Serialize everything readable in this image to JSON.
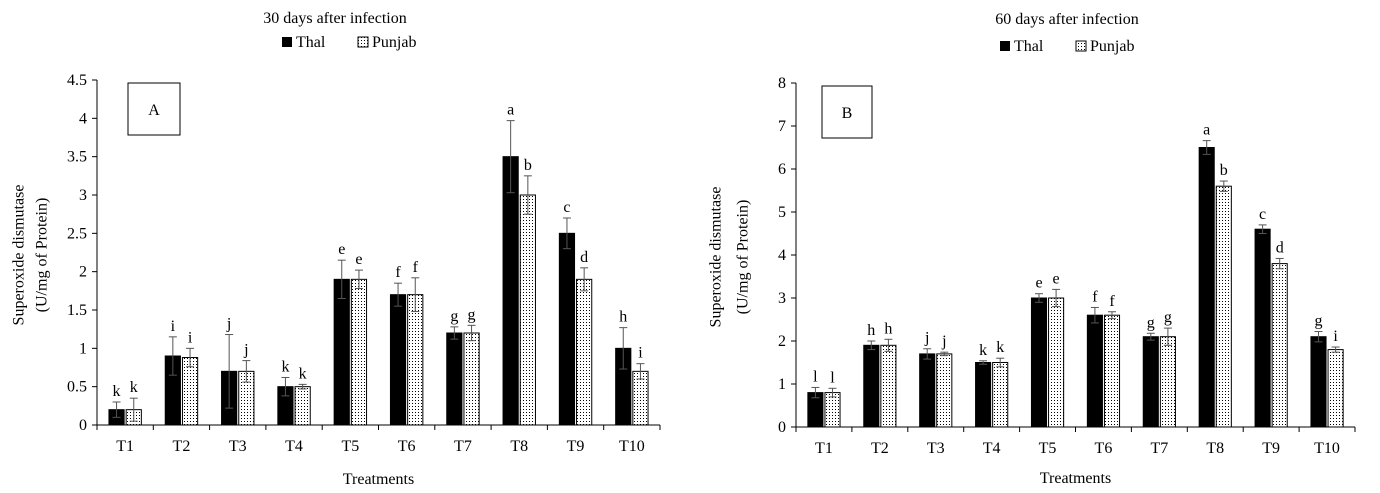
{
  "chart_data": [
    {
      "type": "bar",
      "panel_label": "A",
      "title": "30 days after infection",
      "xlabel": "Treatments",
      "ylabel_line1": "Superoxide dismutase",
      "ylabel_line2": "(U/mg of Protein)",
      "ylim": [
        0,
        4.5
      ],
      "yticks": [
        "0",
        "0.5",
        "1",
        "1.5",
        "2",
        "2.5",
        "3",
        "3.5",
        "4",
        "4.5"
      ],
      "categories": [
        "T1",
        "T2",
        "T3",
        "T4",
        "T5",
        "T6",
        "T7",
        "T8",
        "T9",
        "T10"
      ],
      "series": [
        {
          "name": "Thal",
          "values": [
            0.2,
            0.9,
            0.7,
            0.5,
            1.9,
            1.7,
            1.2,
            3.5,
            2.5,
            1.0
          ],
          "errors": [
            0.1,
            0.25,
            0.48,
            0.12,
            0.25,
            0.15,
            0.08,
            0.47,
            0.2,
            0.27
          ],
          "letters": [
            "k",
            "i",
            "j",
            "k",
            "e",
            "f",
            "g",
            "a",
            "c",
            "h"
          ]
        },
        {
          "name": "Punjab",
          "values": [
            0.2,
            0.88,
            0.7,
            0.5,
            1.9,
            1.7,
            1.2,
            3.0,
            1.9,
            0.7
          ],
          "errors": [
            0.15,
            0.12,
            0.14,
            0.03,
            0.12,
            0.22,
            0.1,
            0.25,
            0.15,
            0.1
          ],
          "letters": [
            "k",
            "i",
            "j",
            "k",
            "e",
            "f",
            "g",
            "b",
            "d",
            "i"
          ]
        }
      ],
      "legend": [
        "Thal",
        "Punjab"
      ]
    },
    {
      "type": "bar",
      "panel_label": "B",
      "title": "60 days after infection",
      "xlabel": "Treatments",
      "ylabel_line1": "Superoxide dismutase",
      "ylabel_line2": "(U/mg of Protein)",
      "ylim": [
        0,
        8
      ],
      "yticks": [
        "0",
        "1",
        "2",
        "3",
        "4",
        "5",
        "6",
        "7",
        "8"
      ],
      "categories": [
        "T1",
        "T2",
        "T3",
        "T4",
        "T5",
        "T6",
        "T7",
        "T8",
        "T9",
        "T10"
      ],
      "series": [
        {
          "name": "Thal",
          "values": [
            0.8,
            1.9,
            1.7,
            1.5,
            3.0,
            2.6,
            2.1,
            6.5,
            4.6,
            2.1
          ],
          "errors": [
            0.12,
            0.1,
            0.12,
            0.04,
            0.1,
            0.18,
            0.08,
            0.16,
            0.1,
            0.12
          ],
          "letters": [
            "l",
            "h",
            "j",
            "k",
            "e",
            "f",
            "g",
            "a",
            "c",
            "g"
          ]
        },
        {
          "name": "Punjab",
          "values": [
            0.8,
            1.9,
            1.7,
            1.5,
            3.0,
            2.6,
            2.1,
            5.6,
            3.8,
            1.8
          ],
          "errors": [
            0.1,
            0.14,
            0.04,
            0.1,
            0.2,
            0.08,
            0.2,
            0.12,
            0.12,
            0.06
          ],
          "letters": [
            "l",
            "h",
            "j",
            "k",
            "e",
            "f",
            "g",
            "b",
            "d",
            "i"
          ]
        }
      ],
      "legend": [
        "Thal",
        "Punjab"
      ]
    }
  ]
}
